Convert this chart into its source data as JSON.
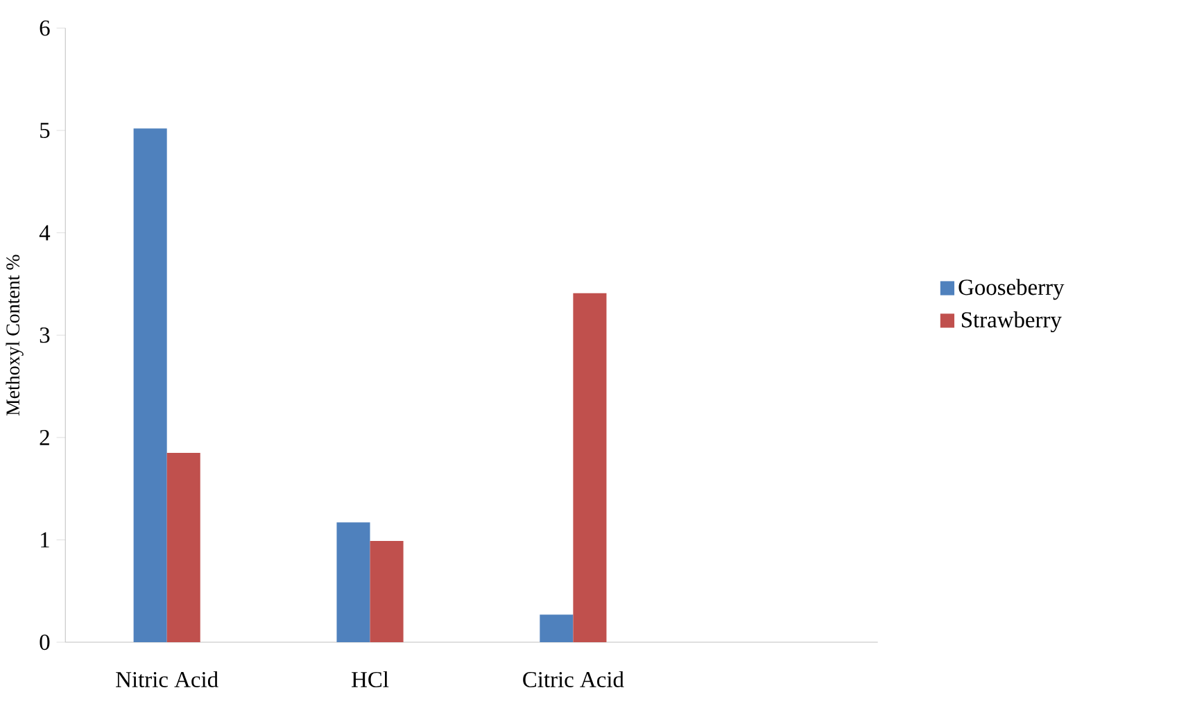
{
  "chart_data": {
    "type": "bar",
    "ylabel": "Methoxyl Content %",
    "categories": [
      "Nitric Acid",
      "HCl",
      "Citric Acid",
      null
    ],
    "series": [
      {
        "name": "Gooseberry",
        "color": "#4f81bd",
        "values": [
          5.02,
          1.17,
          0.27,
          null
        ]
      },
      {
        "name": "Strawberry",
        "color": "#c0504d",
        "values": [
          1.85,
          0.99,
          3.41,
          null
        ]
      }
    ],
    "ylim": [
      0,
      6
    ],
    "yticks": [
      0,
      1,
      2,
      3,
      4,
      5,
      6
    ],
    "legend": "right"
  }
}
